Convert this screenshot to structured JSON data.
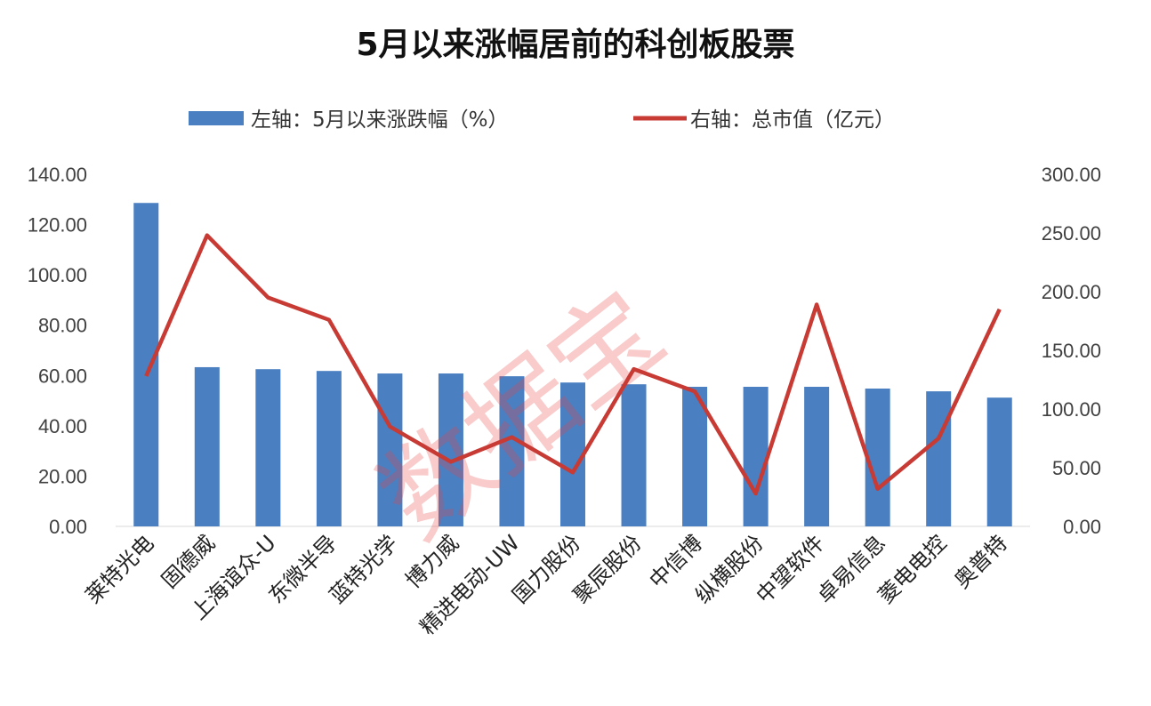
{
  "chart_data": {
    "type": "bar+line",
    "title": "5月以来涨幅居前的科创板股票",
    "categories": [
      "莱特光电",
      "固德威",
      "上海谊众-U",
      "东微半导",
      "蓝特光学",
      "博力威",
      "精进电动-UW",
      "国力股份",
      "聚辰股份",
      "中信博",
      "纵横股份",
      "中望软件",
      "卓易信息",
      "菱电电控",
      "奥普特"
    ],
    "series": [
      {
        "name": "左轴：5月以来涨跌幅（%）",
        "type": "bar",
        "axis": "left",
        "color": "#4a7fc1",
        "values": [
          128.6,
          63.3,
          62.5,
          61.8,
          60.8,
          60.8,
          59.7,
          57.2,
          56.5,
          55.5,
          55.5,
          55.5,
          54.8,
          53.7,
          51.2
        ]
      },
      {
        "name": "右轴：总市值（亿元）",
        "type": "line",
        "axis": "right",
        "color": "#c83a34",
        "values": [
          128,
          248,
          195,
          176,
          85,
          55,
          76,
          46,
          134,
          115,
          28,
          189,
          32,
          75,
          185
        ]
      }
    ],
    "left_axis": {
      "ylim": [
        0,
        140
      ],
      "ticks": [
        "0.00",
        "20.00",
        "40.00",
        "60.00",
        "80.00",
        "100.00",
        "120.00",
        "140.00"
      ]
    },
    "right_axis": {
      "ylim": [
        0,
        300
      ],
      "ticks": [
        "0.00",
        "50.00",
        "100.00",
        "150.00",
        "200.00",
        "250.00",
        "300.00"
      ]
    },
    "grid": false,
    "legend_position": "top"
  },
  "watermark": "数据宝"
}
